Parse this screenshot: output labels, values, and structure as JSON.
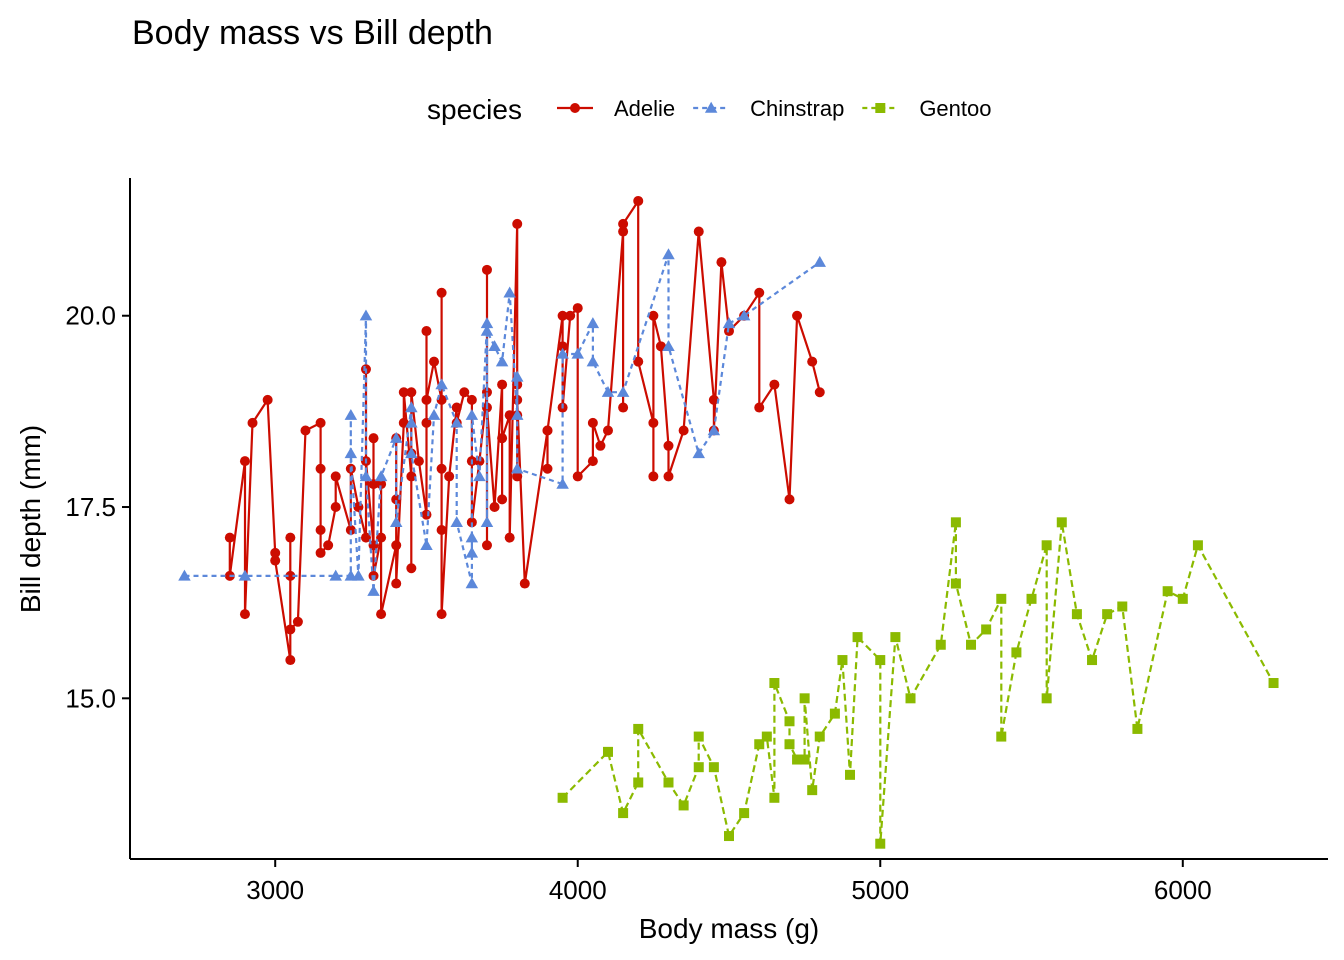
{
  "chart_data": {
    "type": "line",
    "title": "Body mass vs Bill depth",
    "xlabel": "Body mass (g)",
    "ylabel": "Bill depth (mm)",
    "xlim": [
      2520,
      6480
    ],
    "ylim": [
      12.9,
      21.8
    ],
    "xticks": [
      3000,
      4000,
      5000,
      6000
    ],
    "xtick_labels": [
      "3000",
      "4000",
      "5000",
      "6000"
    ],
    "yticks": [
      15.0,
      17.5,
      20.0
    ],
    "ytick_labels": [
      "15.0",
      "17.5",
      "20.0"
    ],
    "grid": false,
    "legend": {
      "title": "species",
      "position": "top"
    },
    "series": [
      {
        "name": "Adelie",
        "color": "#CC0C00",
        "marker": "circle",
        "line": "solid",
        "points": [
          [
            2850,
            17.1
          ],
          [
            2850,
            16.6
          ],
          [
            2900,
            18.1
          ],
          [
            2900,
            16.1
          ],
          [
            2925,
            18.6
          ],
          [
            2975,
            18.9
          ],
          [
            3000,
            16.9
          ],
          [
            3000,
            16.8
          ],
          [
            3050,
            15.5
          ],
          [
            3050,
            16.6
          ],
          [
            3050,
            17.1
          ],
          [
            3050,
            15.9
          ],
          [
            3075,
            16.0
          ],
          [
            3100,
            18.5
          ],
          [
            3150,
            18.6
          ],
          [
            3150,
            18.0
          ],
          [
            3150,
            17.2
          ],
          [
            3150,
            16.9
          ],
          [
            3175,
            17.0
          ],
          [
            3200,
            17.5
          ],
          [
            3200,
            17.9
          ],
          [
            3250,
            17.2
          ],
          [
            3250,
            18.0
          ],
          [
            3275,
            17.5
          ],
          [
            3300,
            17.1
          ],
          [
            3300,
            19.3
          ],
          [
            3300,
            18.1
          ],
          [
            3325,
            17.0
          ],
          [
            3325,
            18.4
          ],
          [
            3325,
            17.8
          ],
          [
            3325,
            16.6
          ],
          [
            3350,
            17.1
          ],
          [
            3350,
            17.8
          ],
          [
            3350,
            16.1
          ],
          [
            3400,
            17.0
          ],
          [
            3400,
            18.4
          ],
          [
            3400,
            17.6
          ],
          [
            3400,
            16.5
          ],
          [
            3425,
            18.6
          ],
          [
            3425,
            19.0
          ],
          [
            3450,
            17.9
          ],
          [
            3450,
            18.2
          ],
          [
            3450,
            16.7
          ],
          [
            3450,
            19.0
          ],
          [
            3475,
            18.1
          ],
          [
            3500,
            17.4
          ],
          [
            3500,
            18.6
          ],
          [
            3500,
            19.8
          ],
          [
            3500,
            18.9
          ],
          [
            3525,
            19.4
          ],
          [
            3550,
            18.9
          ],
          [
            3550,
            20.3
          ],
          [
            3550,
            18.0
          ],
          [
            3550,
            17.2
          ],
          [
            3550,
            16.1
          ],
          [
            3575,
            17.9
          ],
          [
            3600,
            18.8
          ],
          [
            3600,
            18.6
          ],
          [
            3625,
            19.0
          ],
          [
            3650,
            18.9
          ],
          [
            3650,
            18.1
          ],
          [
            3650,
            17.3
          ],
          [
            3675,
            18.1
          ],
          [
            3700,
            19.0
          ],
          [
            3700,
            20.6
          ],
          [
            3700,
            17.0
          ],
          [
            3700,
            18.8
          ],
          [
            3725,
            17.5
          ],
          [
            3750,
            19.1
          ],
          [
            3750,
            17.6
          ],
          [
            3750,
            18.4
          ],
          [
            3775,
            18.7
          ],
          [
            3775,
            17.1
          ],
          [
            3800,
            21.2
          ],
          [
            3800,
            19.1
          ],
          [
            3800,
            18.7
          ],
          [
            3800,
            17.9
          ],
          [
            3800,
            18.9
          ],
          [
            3825,
            16.5
          ],
          [
            3900,
            18.5
          ],
          [
            3900,
            18.0
          ],
          [
            3900,
            18.5
          ],
          [
            3950,
            20.0
          ],
          [
            3950,
            19.6
          ],
          [
            3950,
            18.8
          ],
          [
            3975,
            20.0
          ],
          [
            4000,
            20.1
          ],
          [
            4000,
            17.9
          ],
          [
            4050,
            18.1
          ],
          [
            4050,
            18.6
          ],
          [
            4075,
            18.3
          ],
          [
            4100,
            18.5
          ],
          [
            4150,
            21.1
          ],
          [
            4150,
            18.8
          ],
          [
            4150,
            21.2
          ],
          [
            4200,
            21.5
          ],
          [
            4200,
            19.4
          ],
          [
            4250,
            18.6
          ],
          [
            4250,
            17.9
          ],
          [
            4250,
            20.0
          ],
          [
            4275,
            19.6
          ],
          [
            4300,
            18.3
          ],
          [
            4300,
            17.9
          ],
          [
            4350,
            18.5
          ],
          [
            4400,
            21.1
          ],
          [
            4450,
            18.9
          ],
          [
            4450,
            18.5
          ],
          [
            4475,
            20.7
          ],
          [
            4500,
            19.8
          ],
          [
            4550,
            20.0
          ],
          [
            4600,
            20.3
          ],
          [
            4600,
            18.8
          ],
          [
            4650,
            19.1
          ],
          [
            4700,
            17.6
          ],
          [
            4725,
            20.0
          ],
          [
            4775,
            19.4
          ],
          [
            4800,
            19.0
          ]
        ]
      },
      {
        "name": "Chinstrap",
        "color": "#5C88DA",
        "marker": "triangle",
        "line": "dashed",
        "points": [
          [
            2700,
            16.6
          ],
          [
            2900,
            16.6
          ],
          [
            3200,
            16.6
          ],
          [
            3250,
            16.6
          ],
          [
            3250,
            18.7
          ],
          [
            3250,
            18.2
          ],
          [
            3275,
            16.6
          ],
          [
            3300,
            20.0
          ],
          [
            3300,
            17.9
          ],
          [
            3325,
            16.4
          ],
          [
            3350,
            17.9
          ],
          [
            3400,
            18.4
          ],
          [
            3400,
            17.3
          ],
          [
            3450,
            18.8
          ],
          [
            3450,
            18.6
          ],
          [
            3450,
            18.2
          ],
          [
            3500,
            17.0
          ],
          [
            3525,
            18.7
          ],
          [
            3550,
            19.1
          ],
          [
            3600,
            18.6
          ],
          [
            3600,
            17.3
          ],
          [
            3650,
            16.5
          ],
          [
            3650,
            17.1
          ],
          [
            3650,
            16.9
          ],
          [
            3650,
            18.7
          ],
          [
            3675,
            17.9
          ],
          [
            3700,
            19.9
          ],
          [
            3700,
            17.3
          ],
          [
            3700,
            19.8
          ],
          [
            3725,
            19.6
          ],
          [
            3750,
            19.4
          ],
          [
            3775,
            20.3
          ],
          [
            3800,
            18.7
          ],
          [
            3800,
            19.2
          ],
          [
            3800,
            18.0
          ],
          [
            3950,
            17.8
          ],
          [
            3950,
            19.5
          ],
          [
            4000,
            19.5
          ],
          [
            4050,
            19.9
          ],
          [
            4050,
            19.4
          ],
          [
            4100,
            19.0
          ],
          [
            4150,
            19.0
          ],
          [
            4300,
            20.8
          ],
          [
            4300,
            19.6
          ],
          [
            4400,
            18.2
          ],
          [
            4450,
            18.5
          ],
          [
            4500,
            19.9
          ],
          [
            4550,
            20.0
          ],
          [
            4800,
            20.7
          ]
        ]
      },
      {
        "name": "Gentoo",
        "color": "#8BBA00",
        "marker": "square",
        "line": "dashed",
        "points": [
          [
            3950,
            13.7
          ],
          [
            4100,
            14.3
          ],
          [
            4150,
            13.5
          ],
          [
            4200,
            13.9
          ],
          [
            4200,
            14.6
          ],
          [
            4300,
            13.9
          ],
          [
            4350,
            13.6
          ],
          [
            4400,
            14.1
          ],
          [
            4400,
            14.5
          ],
          [
            4450,
            14.1
          ],
          [
            4500,
            13.2
          ],
          [
            4550,
            13.5
          ],
          [
            4600,
            14.4
          ],
          [
            4625,
            14.5
          ],
          [
            4650,
            13.7
          ],
          [
            4650,
            15.2
          ],
          [
            4700,
            14.7
          ],
          [
            4700,
            14.4
          ],
          [
            4725,
            14.2
          ],
          [
            4750,
            14.2
          ],
          [
            4750,
            15.0
          ],
          [
            4775,
            13.8
          ],
          [
            4800,
            14.5
          ],
          [
            4850,
            14.8
          ],
          [
            4875,
            15.5
          ],
          [
            4900,
            14.0
          ],
          [
            4925,
            15.8
          ],
          [
            5000,
            15.5
          ],
          [
            5000,
            13.1
          ],
          [
            5050,
            15.8
          ],
          [
            5100,
            15.0
          ],
          [
            5200,
            15.7
          ],
          [
            5250,
            17.3
          ],
          [
            5250,
            16.5
          ],
          [
            5300,
            15.7
          ],
          [
            5350,
            15.9
          ],
          [
            5400,
            16.3
          ],
          [
            5400,
            14.5
          ],
          [
            5450,
            15.6
          ],
          [
            5500,
            16.3
          ],
          [
            5550,
            17.0
          ],
          [
            5550,
            15.0
          ],
          [
            5600,
            17.3
          ],
          [
            5650,
            16.1
          ],
          [
            5700,
            15.5
          ],
          [
            5750,
            16.1
          ],
          [
            5800,
            16.2
          ],
          [
            5850,
            14.6
          ],
          [
            5950,
            16.4
          ],
          [
            6000,
            16.3
          ],
          [
            6050,
            17.0
          ],
          [
            6300,
            15.2
          ]
        ]
      }
    ]
  }
}
